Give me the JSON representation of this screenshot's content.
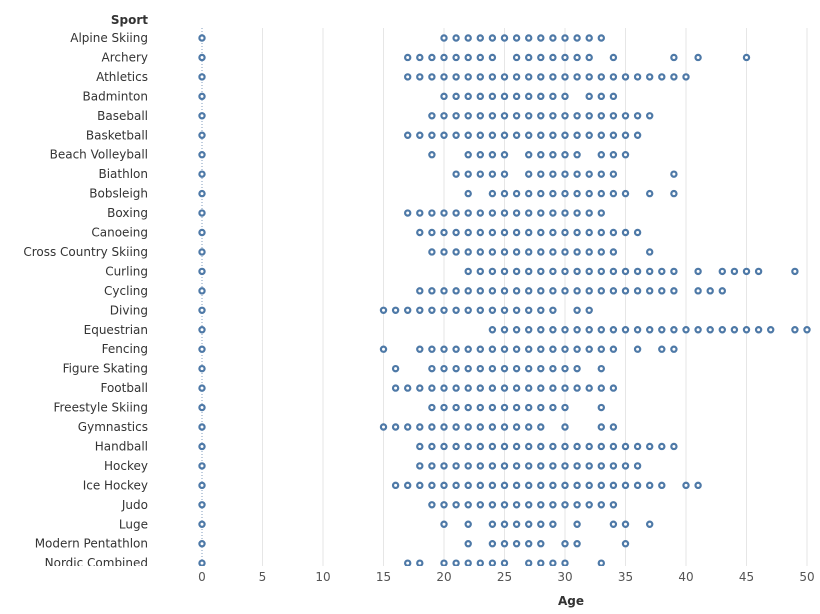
{
  "chart_data": {
    "type": "scatter",
    "title": "",
    "row_header": "Sport",
    "xlabel": "Age",
    "xlim": [
      -3,
      50
    ],
    "x_ticks": [
      0,
      5,
      10,
      15,
      20,
      25,
      30,
      35,
      40,
      45,
      50
    ],
    "grid": true,
    "marker_color": "#4e79a7",
    "rows": [
      {
        "category": "Alpine Skiing",
        "ages": [
          0,
          20,
          21,
          22,
          23,
          24,
          25,
          26,
          27,
          28,
          29,
          30,
          31,
          32,
          33
        ]
      },
      {
        "category": "Archery",
        "ages": [
          0,
          17,
          18,
          19,
          20,
          21,
          22,
          23,
          24,
          26,
          27,
          28,
          29,
          30,
          31,
          32,
          34,
          39,
          41,
          45
        ]
      },
      {
        "category": "Athletics",
        "ages": [
          0,
          17,
          18,
          19,
          20,
          21,
          22,
          23,
          24,
          25,
          26,
          27,
          28,
          29,
          30,
          31,
          32,
          33,
          34,
          35,
          36,
          37,
          38,
          39,
          40
        ]
      },
      {
        "category": "Badminton",
        "ages": [
          0,
          20,
          21,
          22,
          23,
          24,
          25,
          26,
          27,
          28,
          29,
          30,
          32,
          33,
          34
        ]
      },
      {
        "category": "Baseball",
        "ages": [
          0,
          19,
          20,
          21,
          22,
          23,
          24,
          25,
          26,
          27,
          28,
          29,
          30,
          31,
          32,
          33,
          34,
          35,
          36,
          37
        ]
      },
      {
        "category": "Basketball",
        "ages": [
          0,
          17,
          18,
          19,
          20,
          21,
          22,
          23,
          24,
          25,
          26,
          27,
          28,
          29,
          30,
          31,
          32,
          33,
          34,
          35,
          36
        ]
      },
      {
        "category": "Beach Volleyball",
        "ages": [
          0,
          19,
          22,
          23,
          24,
          25,
          27,
          28,
          29,
          30,
          31,
          33,
          34,
          35
        ]
      },
      {
        "category": "Biathlon",
        "ages": [
          0,
          21,
          22,
          23,
          24,
          25,
          27,
          28,
          29,
          30,
          31,
          32,
          33,
          34,
          39
        ]
      },
      {
        "category": "Bobsleigh",
        "ages": [
          0,
          22,
          24,
          25,
          26,
          27,
          28,
          29,
          30,
          31,
          32,
          33,
          34,
          35,
          37,
          39
        ]
      },
      {
        "category": "Boxing",
        "ages": [
          0,
          17,
          18,
          19,
          20,
          21,
          22,
          23,
          24,
          25,
          26,
          27,
          28,
          29,
          30,
          31,
          32,
          33
        ]
      },
      {
        "category": "Canoeing",
        "ages": [
          0,
          18,
          19,
          20,
          21,
          22,
          23,
          24,
          25,
          26,
          27,
          28,
          29,
          30,
          31,
          32,
          33,
          34,
          35,
          36
        ]
      },
      {
        "category": "Cross Country Skiing",
        "ages": [
          0,
          19,
          20,
          21,
          22,
          23,
          24,
          25,
          26,
          27,
          28,
          29,
          30,
          31,
          32,
          33,
          34,
          37
        ]
      },
      {
        "category": "Curling",
        "ages": [
          0,
          22,
          23,
          24,
          25,
          26,
          27,
          28,
          29,
          30,
          31,
          32,
          33,
          34,
          35,
          36,
          37,
          38,
          39,
          41,
          43,
          44,
          45,
          46,
          49
        ]
      },
      {
        "category": "Cycling",
        "ages": [
          0,
          18,
          19,
          20,
          21,
          22,
          23,
          24,
          25,
          26,
          27,
          28,
          29,
          30,
          31,
          32,
          33,
          34,
          35,
          36,
          37,
          38,
          39,
          41,
          42,
          43
        ]
      },
      {
        "category": "Diving",
        "ages": [
          0,
          15,
          16,
          17,
          18,
          19,
          20,
          21,
          22,
          23,
          24,
          25,
          26,
          27,
          28,
          29,
          31,
          32
        ]
      },
      {
        "category": "Equestrian",
        "ages": [
          0,
          24,
          25,
          26,
          27,
          28,
          29,
          30,
          31,
          32,
          33,
          34,
          35,
          36,
          37,
          38,
          39,
          40,
          41,
          42,
          43,
          44,
          45,
          46,
          47,
          49,
          50
        ]
      },
      {
        "category": "Fencing",
        "ages": [
          0,
          15,
          18,
          19,
          20,
          21,
          22,
          23,
          24,
          25,
          26,
          27,
          28,
          29,
          30,
          31,
          32,
          33,
          34,
          36,
          38,
          39
        ]
      },
      {
        "category": "Figure Skating",
        "ages": [
          0,
          16,
          19,
          20,
          21,
          22,
          23,
          24,
          25,
          26,
          27,
          28,
          29,
          30,
          31,
          33
        ]
      },
      {
        "category": "Football",
        "ages": [
          0,
          16,
          17,
          18,
          19,
          20,
          21,
          22,
          23,
          24,
          25,
          26,
          27,
          28,
          29,
          30,
          31,
          32,
          33,
          34
        ]
      },
      {
        "category": "Freestyle Skiing",
        "ages": [
          0,
          19,
          20,
          21,
          22,
          23,
          24,
          25,
          26,
          27,
          28,
          29,
          30,
          33
        ]
      },
      {
        "category": "Gymnastics",
        "ages": [
          0,
          15,
          16,
          17,
          18,
          19,
          20,
          21,
          22,
          23,
          24,
          25,
          26,
          27,
          28,
          30,
          33,
          34
        ]
      },
      {
        "category": "Handball",
        "ages": [
          0,
          18,
          19,
          20,
          21,
          22,
          23,
          24,
          25,
          26,
          27,
          28,
          29,
          30,
          31,
          32,
          33,
          34,
          35,
          36,
          37,
          38,
          39
        ]
      },
      {
        "category": "Hockey",
        "ages": [
          0,
          18,
          19,
          20,
          21,
          22,
          23,
          24,
          25,
          26,
          27,
          28,
          29,
          30,
          31,
          32,
          33,
          34,
          35,
          36
        ]
      },
      {
        "category": "Ice Hockey",
        "ages": [
          0,
          16,
          17,
          18,
          19,
          20,
          21,
          22,
          23,
          24,
          25,
          26,
          27,
          28,
          29,
          30,
          31,
          32,
          33,
          34,
          35,
          36,
          37,
          38,
          40,
          41
        ]
      },
      {
        "category": "Judo",
        "ages": [
          0,
          19,
          20,
          21,
          22,
          23,
          24,
          25,
          26,
          27,
          28,
          29,
          30,
          31,
          32,
          33,
          34
        ]
      },
      {
        "category": "Luge",
        "ages": [
          0,
          20,
          22,
          24,
          25,
          26,
          27,
          28,
          29,
          31,
          34,
          35,
          37
        ]
      },
      {
        "category": "Modern Pentathlon",
        "ages": [
          0,
          22,
          24,
          25,
          26,
          27,
          28,
          30,
          31,
          35
        ]
      },
      {
        "category": "Nordic Combined",
        "ages": [
          0,
          17,
          18,
          20,
          21,
          22,
          23,
          24,
          25,
          27,
          28,
          29,
          30,
          33
        ]
      }
    ]
  }
}
